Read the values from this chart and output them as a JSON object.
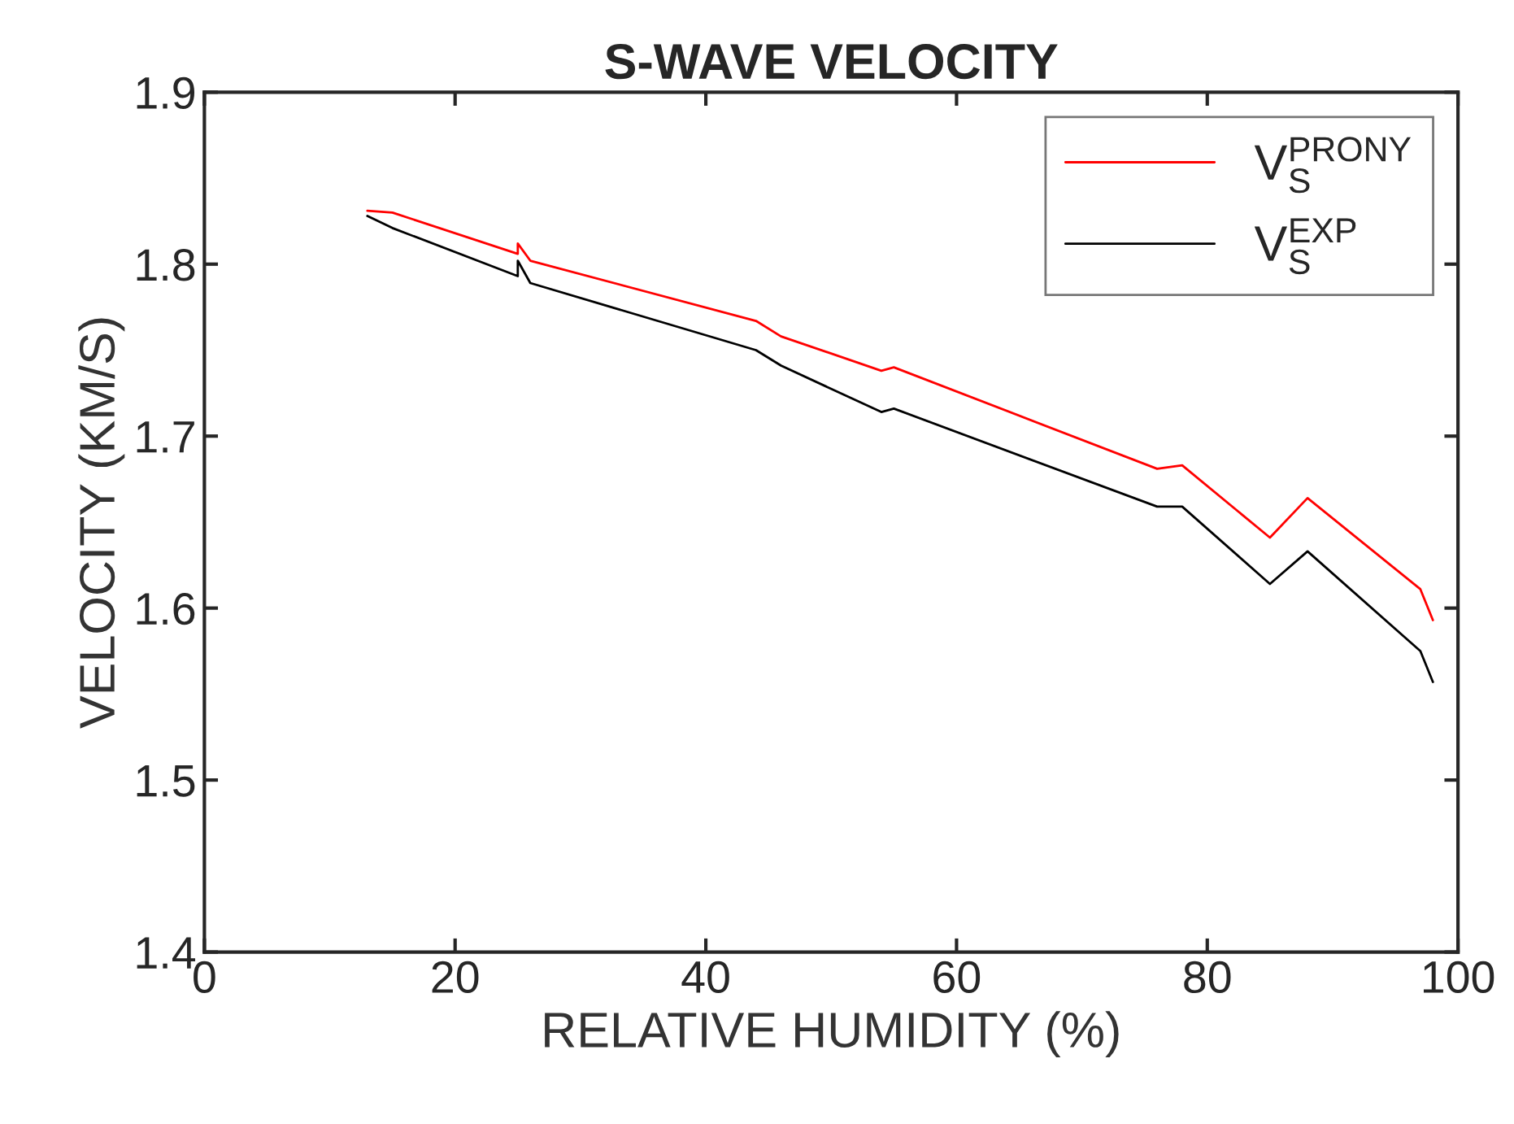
{
  "chart_data": {
    "type": "line",
    "title": "S-WAVE VELOCITY",
    "xlabel": "RELATIVE HUMIDITY (%)",
    "ylabel": "VELOCITY (KM/S)",
    "x": [
      13,
      15,
      25,
      25,
      26,
      44,
      46,
      54,
      55,
      76,
      78,
      85,
      88,
      97,
      98
    ],
    "series": [
      {
        "name": "V$^{PRONY}$$_{S}$",
        "color": "#ff0000",
        "values": [
          1.831,
          1.83,
          1.806,
          1.812,
          1.802,
          1.767,
          1.758,
          1.738,
          1.74,
          1.681,
          1.683,
          1.641,
          1.664,
          1.611,
          1.593
        ]
      },
      {
        "name": "V$^{EXP}$$_{S}$",
        "color": "#000000",
        "values": [
          1.828,
          1.821,
          1.793,
          1.802,
          1.789,
          1.75,
          1.741,
          1.714,
          1.716,
          1.659,
          1.659,
          1.614,
          1.633,
          1.575,
          1.557
        ]
      }
    ],
    "xlim": [
      0,
      100
    ],
    "xticks": [
      0,
      20,
      40,
      60,
      80,
      100
    ],
    "ylim": [
      1.4,
      1.9
    ],
    "yticks": [
      1.4,
      1.5,
      1.6,
      1.7,
      1.8,
      1.9
    ],
    "grid": false,
    "legend": "top right",
    "marker": "none",
    "line_style": "solid"
  }
}
